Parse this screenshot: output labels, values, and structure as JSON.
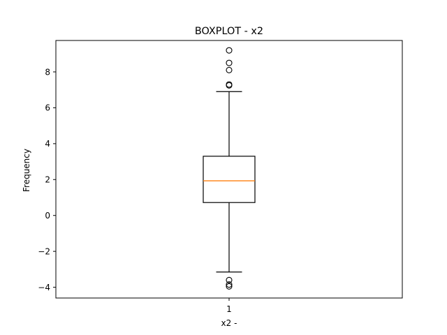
{
  "chart_data": {
    "type": "boxplot",
    "title": "BOXPLOT - x2",
    "xlabel": "x2 -",
    "ylabel": "Frequency",
    "categories": [
      "1"
    ],
    "ylim": [
      -4.6,
      9.75
    ],
    "yticks": [
      -4,
      -2,
      0,
      2,
      4,
      6,
      8
    ],
    "ytick_labels": [
      "−4",
      "−2",
      "0",
      "2",
      "4",
      "6",
      "8"
    ],
    "grid": false,
    "boxes": [
      {
        "label": "1",
        "whisker_low": -3.15,
        "q1": 0.72,
        "median": 1.93,
        "q3": 3.3,
        "whisker_high": 6.9,
        "outliers": [
          9.2,
          8.5,
          8.1,
          7.3,
          7.25,
          -3.6,
          -3.85,
          -3.95
        ]
      }
    ],
    "colors": {
      "box": "#000000",
      "median": "#ff7f0e",
      "outlier": "#000000"
    }
  }
}
